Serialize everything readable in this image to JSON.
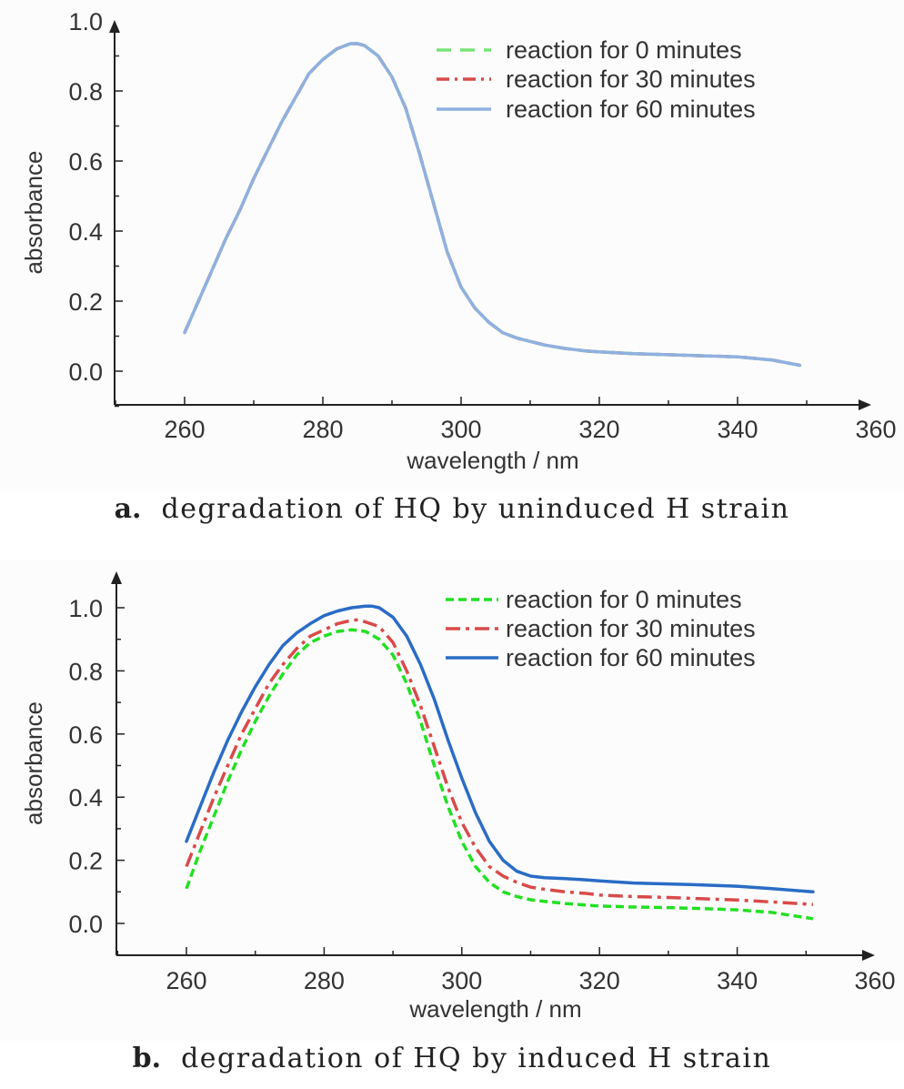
{
  "chart_data": [
    {
      "type": "line",
      "caption_letter": "a.",
      "caption_text": "degradation of HQ by uninduced H strain",
      "xlabel": "wavelength / nm",
      "ylabel": "absorbance",
      "xlim": [
        250,
        360
      ],
      "ylim": [
        -0.1,
        1.0
      ],
      "xticks": [
        260,
        280,
        300,
        320,
        340,
        360
      ],
      "xtick_labels": [
        "260",
        "280",
        "300",
        "320",
        "340",
        "360"
      ],
      "yticks": [
        0.0,
        0.2,
        0.4,
        0.6,
        0.8,
        1.0
      ],
      "ytick_labels": [
        "0.0",
        "0.2",
        "0.4",
        "0.6",
        "0.8",
        "1.0"
      ],
      "legend_position": "top-right",
      "x": [
        260,
        262,
        264,
        266,
        268,
        270,
        272,
        274,
        276,
        278,
        280,
        282,
        284,
        285,
        286,
        288,
        290,
        292,
        294,
        296,
        298,
        300,
        302,
        304,
        306,
        308,
        310,
        312,
        315,
        318,
        320,
        325,
        330,
        335,
        340,
        345,
        349
      ],
      "series": [
        {
          "name": "reaction for 0 minutes",
          "color": "#77e477",
          "dash": "16,10",
          "values": [
            0.11,
            0.2,
            0.29,
            0.38,
            0.46,
            0.55,
            0.63,
            0.71,
            0.78,
            0.85,
            0.89,
            0.92,
            0.935,
            0.935,
            0.93,
            0.9,
            0.84,
            0.75,
            0.62,
            0.48,
            0.34,
            0.24,
            0.18,
            0.14,
            0.11,
            0.095,
            0.085,
            0.075,
            0.065,
            0.058,
            0.055,
            0.05,
            0.047,
            0.044,
            0.041,
            0.032,
            0.017
          ]
        },
        {
          "name": "reaction for 30 minutes",
          "color": "#d94a4a",
          "dash": "14,6,3,6",
          "values": [
            0.11,
            0.2,
            0.29,
            0.38,
            0.46,
            0.55,
            0.63,
            0.71,
            0.78,
            0.85,
            0.89,
            0.92,
            0.935,
            0.935,
            0.93,
            0.9,
            0.84,
            0.75,
            0.62,
            0.48,
            0.34,
            0.24,
            0.18,
            0.14,
            0.11,
            0.095,
            0.085,
            0.075,
            0.065,
            0.058,
            0.055,
            0.05,
            0.047,
            0.044,
            0.041,
            0.032,
            0.017
          ]
        },
        {
          "name": "reaction for 60 minutes",
          "color": "#8fb1e0",
          "dash": "",
          "values": [
            0.11,
            0.2,
            0.29,
            0.38,
            0.46,
            0.55,
            0.63,
            0.71,
            0.78,
            0.85,
            0.89,
            0.92,
            0.935,
            0.935,
            0.93,
            0.9,
            0.84,
            0.75,
            0.62,
            0.48,
            0.34,
            0.24,
            0.18,
            0.14,
            0.11,
            0.095,
            0.085,
            0.075,
            0.065,
            0.058,
            0.055,
            0.05,
            0.047,
            0.044,
            0.041,
            0.032,
            0.017
          ]
        }
      ]
    },
    {
      "type": "line",
      "caption_letter": "b.",
      "caption_text": "degradation of HQ by induced H strain",
      "xlabel": "wavelength / nm",
      "ylabel": "absorbance",
      "xlim": [
        250,
        360
      ],
      "ylim": [
        -0.1,
        1.1
      ],
      "xticks": [
        260,
        280,
        300,
        320,
        340,
        360
      ],
      "xtick_labels": [
        "260",
        "280",
        "300",
        "320",
        "340",
        "360"
      ],
      "yticks": [
        0.0,
        0.2,
        0.4,
        0.6,
        0.8,
        1.0
      ],
      "ytick_labels": [
        "0.0",
        "0.2",
        "0.4",
        "0.6",
        "0.8",
        "1.0"
      ],
      "legend_position": "top-right",
      "series": [
        {
          "name": "reaction for 0 minutes",
          "color": "#22e022",
          "dash": "9,5",
          "x": [
            260,
            262,
            264,
            266,
            268,
            270,
            272,
            274,
            276,
            278,
            280,
            282,
            284,
            286,
            288,
            290,
            292,
            294,
            296,
            298,
            300,
            302,
            304,
            306,
            308,
            310,
            312,
            315,
            318,
            320,
            325,
            330,
            335,
            340,
            345,
            351
          ],
          "values": [
            0.11,
            0.23,
            0.34,
            0.45,
            0.55,
            0.64,
            0.72,
            0.79,
            0.85,
            0.89,
            0.91,
            0.925,
            0.93,
            0.925,
            0.9,
            0.85,
            0.76,
            0.64,
            0.5,
            0.37,
            0.26,
            0.18,
            0.13,
            0.1,
            0.085,
            0.075,
            0.07,
            0.063,
            0.058,
            0.055,
            0.052,
            0.05,
            0.047,
            0.043,
            0.035,
            0.015
          ]
        },
        {
          "name": "reaction for 30 minutes",
          "color": "#d94a4a",
          "dash": "16,6,4,6",
          "x": [
            260,
            262,
            264,
            266,
            268,
            270,
            272,
            274,
            276,
            278,
            280,
            282,
            284,
            285,
            286,
            288,
            290,
            292,
            294,
            296,
            298,
            300,
            302,
            304,
            306,
            308,
            310,
            312,
            315,
            318,
            320,
            325,
            330,
            335,
            340,
            345,
            351
          ],
          "values": [
            0.18,
            0.29,
            0.4,
            0.5,
            0.6,
            0.68,
            0.76,
            0.82,
            0.87,
            0.91,
            0.93,
            0.95,
            0.96,
            0.962,
            0.955,
            0.94,
            0.89,
            0.8,
            0.69,
            0.56,
            0.43,
            0.32,
            0.24,
            0.18,
            0.15,
            0.13,
            0.115,
            0.108,
            0.1,
            0.095,
            0.09,
            0.085,
            0.082,
            0.078,
            0.074,
            0.068,
            0.06
          ]
        },
        {
          "name": "reaction for 60 minutes",
          "color": "#2a6cc6",
          "dash": "",
          "x": [
            260,
            262,
            264,
            266,
            268,
            270,
            272,
            274,
            276,
            278,
            280,
            282,
            284,
            286,
            287,
            288,
            290,
            292,
            294,
            296,
            298,
            300,
            302,
            304,
            306,
            308,
            310,
            312,
            315,
            318,
            320,
            325,
            330,
            335,
            340,
            345,
            351
          ],
          "values": [
            0.26,
            0.37,
            0.48,
            0.58,
            0.67,
            0.75,
            0.82,
            0.88,
            0.92,
            0.95,
            0.975,
            0.99,
            1.0,
            1.005,
            1.005,
            1.0,
            0.97,
            0.91,
            0.82,
            0.71,
            0.58,
            0.46,
            0.35,
            0.26,
            0.2,
            0.165,
            0.15,
            0.145,
            0.142,
            0.138,
            0.135,
            0.128,
            0.125,
            0.122,
            0.118,
            0.11,
            0.1
          ]
        }
      ]
    }
  ]
}
